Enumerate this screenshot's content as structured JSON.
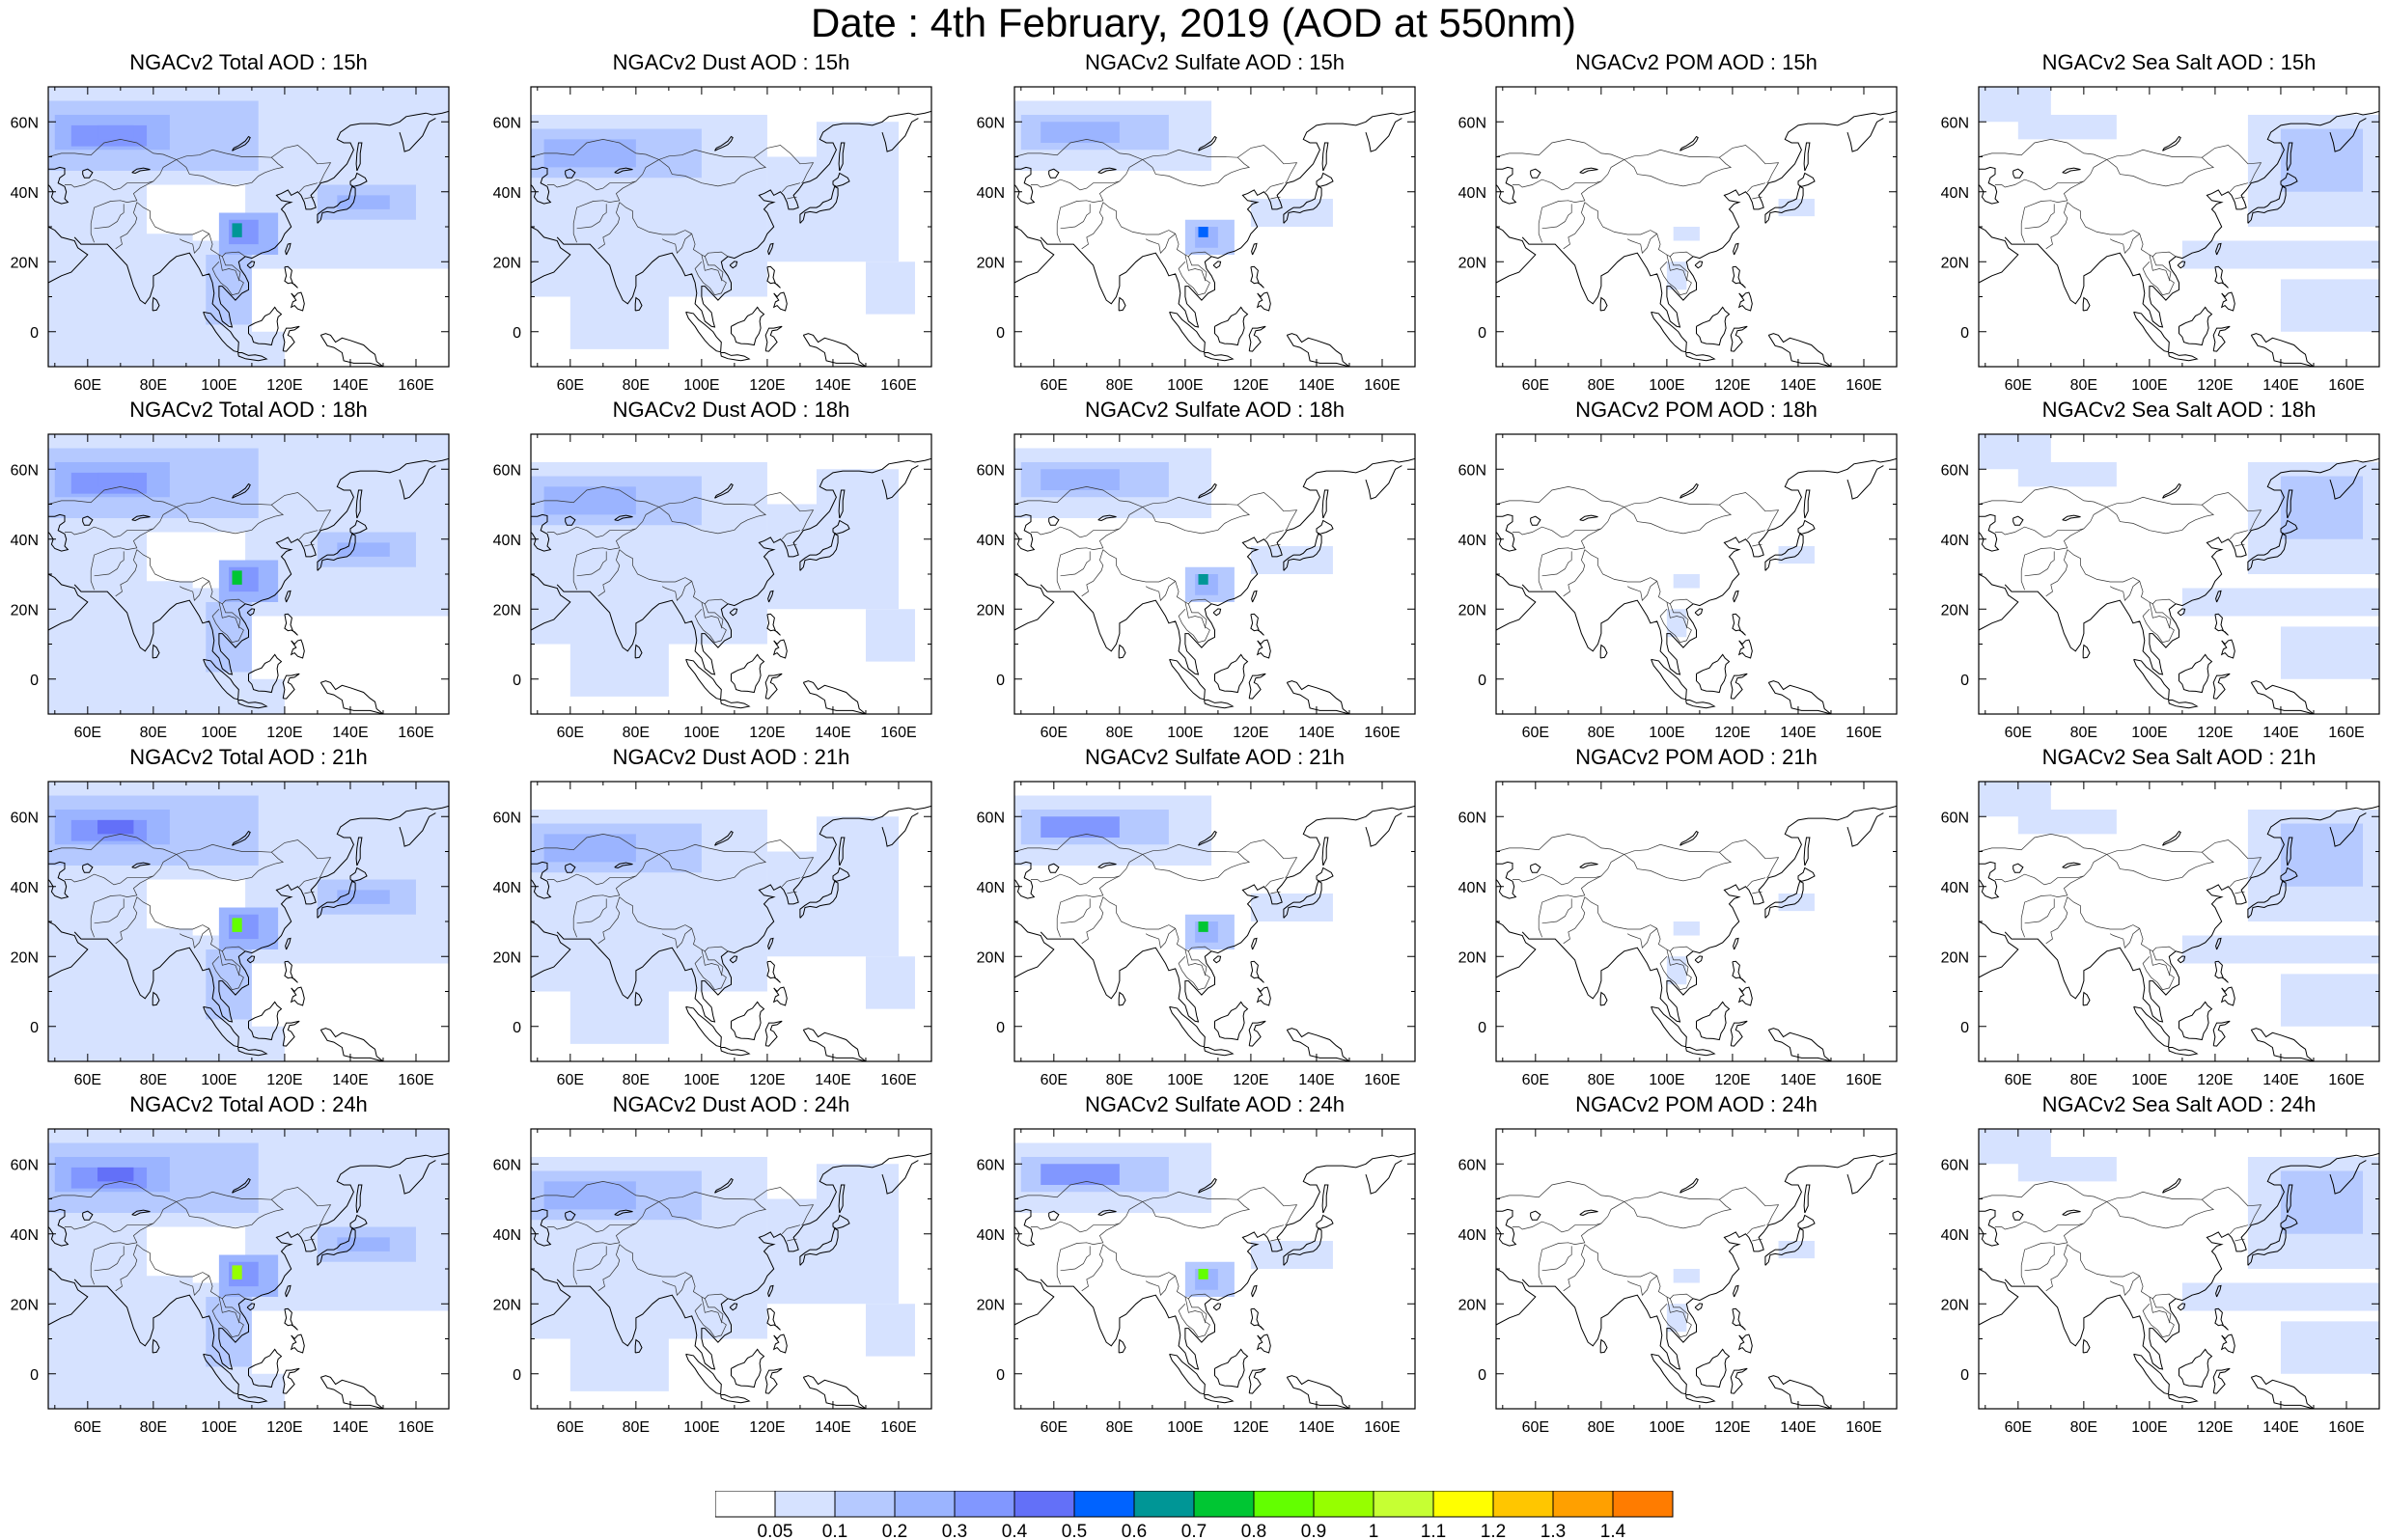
{
  "page_title": "Date : 4th February, 2019 (AOD at 550nm)",
  "panels": [
    {
      "title": "NGACv2 Total AOD : 15h",
      "species": "total",
      "hour": "15h"
    },
    {
      "title": "NGACv2 Dust AOD : 15h",
      "species": "dust",
      "hour": "15h"
    },
    {
      "title": "NGACv2 Sulfate AOD : 15h",
      "species": "sulfate",
      "hour": "15h"
    },
    {
      "title": "NGACv2 POM AOD : 15h",
      "species": "pom",
      "hour": "15h"
    },
    {
      "title": "NGACv2 Sea Salt AOD : 15h",
      "species": "seasalt",
      "hour": "15h"
    },
    {
      "title": "NGACv2 Total AOD : 18h",
      "species": "total",
      "hour": "18h"
    },
    {
      "title": "NGACv2 Dust AOD : 18h",
      "species": "dust",
      "hour": "18h"
    },
    {
      "title": "NGACv2 Sulfate AOD : 18h",
      "species": "sulfate",
      "hour": "18h"
    },
    {
      "title": "NGACv2 POM AOD : 18h",
      "species": "pom",
      "hour": "18h"
    },
    {
      "title": "NGACv2 Sea Salt AOD : 18h",
      "species": "seasalt",
      "hour": "18h"
    },
    {
      "title": "NGACv2 Total AOD : 21h",
      "species": "total",
      "hour": "21h"
    },
    {
      "title": "NGACv2 Dust AOD : 21h",
      "species": "dust",
      "hour": "21h"
    },
    {
      "title": "NGACv2 Sulfate AOD : 21h",
      "species": "sulfate",
      "hour": "21h"
    },
    {
      "title": "NGACv2 POM AOD : 21h",
      "species": "pom",
      "hour": "21h"
    },
    {
      "title": "NGACv2 Sea Salt AOD : 21h",
      "species": "seasalt",
      "hour": "21h"
    },
    {
      "title": "NGACv2 Total AOD : 24h",
      "species": "total",
      "hour": "24h"
    },
    {
      "title": "NGACv2 Dust AOD : 24h",
      "species": "dust",
      "hour": "24h"
    },
    {
      "title": "NGACv2 Sulfate AOD : 24h",
      "species": "sulfate",
      "hour": "24h"
    },
    {
      "title": "NGACv2 POM AOD : 24h",
      "species": "pom",
      "hour": "24h"
    },
    {
      "title": "NGACv2 Sea Salt  AOD : 24h",
      "species": "seasalt",
      "hour": "24h"
    }
  ],
  "map": {
    "lon_range": [
      48,
      170
    ],
    "lat_range": [
      -10,
      70
    ],
    "lon_ticks": [
      60,
      80,
      100,
      120,
      140,
      160
    ],
    "lon_tick_labels": [
      "60E",
      "80E",
      "100E",
      "120E",
      "140E",
      "160E"
    ],
    "lat_ticks": [
      0,
      20,
      40,
      60
    ],
    "lat_tick_labels": [
      "0",
      "20N",
      "40N",
      "60N"
    ]
  },
  "colorbar": {
    "labels": [
      "0.05",
      "0.1",
      "0.2",
      "0.3",
      "0.4",
      "0.5",
      "0.6",
      "0.7",
      "0.8",
      "0.9",
      "1",
      "1.1",
      "1.2",
      "1.3",
      "1.4"
    ],
    "colors": [
      "#ffffff",
      "#d6e2ff",
      "#b5c9ff",
      "#9bb4ff",
      "#8197ff",
      "#6370f8",
      "#0063ff",
      "#009696",
      "#00c633",
      "#63ff00",
      "#96ff00",
      "#c6ff33",
      "#ffff00",
      "#ffc600",
      "#ffa000",
      "#ff7c00",
      "#ff1900"
    ]
  }
}
